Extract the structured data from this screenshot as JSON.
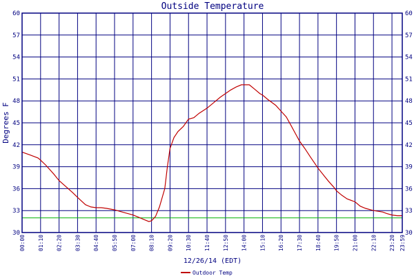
{
  "chart_data": {
    "type": "line",
    "title": "Outside Temperature",
    "xlabel": "12/26/14 (EDT)",
    "ylabel": "Degrees F",
    "ylim": [
      30,
      60
    ],
    "yticks": [
      30,
      33,
      36,
      39,
      42,
      45,
      48,
      51,
      54,
      57,
      60
    ],
    "xlim": [
      "00:00",
      "23:59"
    ],
    "xtick_labels": [
      "00:00",
      "01:10",
      "02:20",
      "03:30",
      "04:40",
      "05:50",
      "07:00",
      "08:10",
      "09:20",
      "10:30",
      "11:40",
      "12:50",
      "14:00",
      "15:10",
      "16:20",
      "17:30",
      "18:40",
      "19:50",
      "21:00",
      "22:10",
      "23:20",
      "23:59"
    ],
    "grid": true,
    "reference_line": {
      "value": 32,
      "color": "#00b000"
    },
    "colors": {
      "background": "#ffffff",
      "grid": "#000080",
      "series": "#c00000",
      "text": "#000080"
    },
    "legend_position": "bottom",
    "series": [
      {
        "name": "Outdoor Temp",
        "x": [
          "00:00",
          "00:30",
          "01:00",
          "01:10",
          "01:30",
          "02:00",
          "02:20",
          "02:45",
          "03:10",
          "03:30",
          "03:45",
          "04:00",
          "04:20",
          "04:40",
          "05:00",
          "05:20",
          "05:50",
          "06:10",
          "06:30",
          "07:00",
          "07:20",
          "07:40",
          "08:00",
          "08:10",
          "08:25",
          "08:40",
          "09:00",
          "09:10",
          "09:20",
          "09:35",
          "09:50",
          "10:10",
          "10:30",
          "10:50",
          "11:10",
          "11:40",
          "12:10",
          "12:30",
          "12:50",
          "13:10",
          "13:30",
          "13:50",
          "14:00",
          "14:20",
          "14:40",
          "15:00",
          "15:10",
          "15:30",
          "16:00",
          "16:20",
          "16:40",
          "17:00",
          "17:15",
          "17:30",
          "17:50",
          "18:10",
          "18:40",
          "19:00",
          "19:20",
          "19:40",
          "19:50",
          "20:10",
          "20:30",
          "21:00",
          "21:20",
          "21:40",
          "22:00",
          "22:10",
          "22:30",
          "22:45",
          "23:00",
          "23:20",
          "23:40",
          "23:59"
        ],
        "values": [
          41.0,
          40.6,
          40.2,
          39.9,
          39.2,
          38.0,
          37.1,
          36.3,
          35.5,
          34.8,
          34.3,
          33.8,
          33.5,
          33.4,
          33.4,
          33.3,
          33.1,
          32.9,
          32.7,
          32.4,
          32.1,
          31.8,
          31.5,
          31.6,
          32.2,
          33.5,
          36.0,
          39.0,
          41.5,
          43.0,
          43.8,
          44.5,
          45.5,
          45.7,
          46.3,
          47.0,
          47.9,
          48.5,
          49.0,
          49.5,
          49.9,
          50.2,
          50.2,
          50.2,
          49.6,
          49.0,
          48.8,
          48.2,
          47.4,
          46.6,
          45.8,
          44.5,
          43.5,
          42.5,
          41.5,
          40.4,
          38.8,
          37.9,
          37.0,
          36.2,
          35.7,
          35.1,
          34.6,
          34.2,
          33.6,
          33.3,
          33.1,
          33.0,
          32.9,
          32.8,
          32.6,
          32.4,
          32.3,
          32.3
        ]
      }
    ]
  }
}
